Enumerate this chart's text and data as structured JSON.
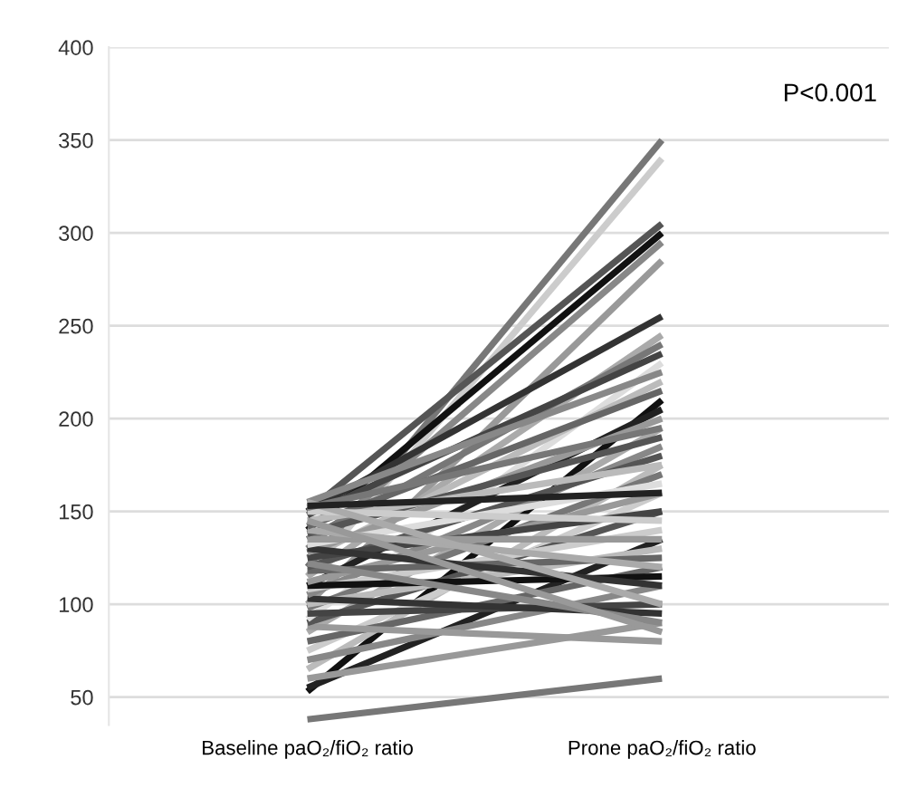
{
  "chart_data": {
    "type": "line",
    "categories": [
      "Baseline paO₂/fiO₂ ratio",
      "Prone paO₂/fiO₂ ratio"
    ],
    "ylim": [
      35,
      400
    ],
    "yticks": [
      50,
      100,
      150,
      200,
      250,
      300,
      350,
      400
    ],
    "grid": "y",
    "legend": false,
    "marker": "none",
    "line_style": "solid",
    "annotations": [
      "P<0.001"
    ],
    "series": [
      {
        "color": "#777777",
        "values": [
          38,
          60
        ]
      },
      {
        "color": "#111111",
        "values": [
          53,
          210
        ]
      },
      {
        "color": "#222222",
        "values": [
          55,
          135
        ]
      },
      {
        "color": "#999999",
        "values": [
          60,
          90
        ]
      },
      {
        "color": "#bbbbbb",
        "values": [
          65,
          175
        ]
      },
      {
        "color": "#888888",
        "values": [
          70,
          110
        ]
      },
      {
        "color": "#cccccc",
        "values": [
          75,
          160
        ]
      },
      {
        "color": "#666666",
        "values": [
          80,
          120
        ]
      },
      {
        "color": "#aaaaaa",
        "values": [
          85,
          195
        ]
      },
      {
        "color": "#999999",
        "values": [
          88,
          80
        ]
      },
      {
        "color": "#555555",
        "values": [
          90,
          150
        ]
      },
      {
        "color": "#dddddd",
        "values": [
          92,
          230
        ]
      },
      {
        "color": "#444444",
        "values": [
          95,
          100
        ]
      },
      {
        "color": "#777777",
        "values": [
          98,
          170
        ]
      },
      {
        "color": "#999999",
        "values": [
          100,
          285
        ]
      },
      {
        "color": "#bbbbbb",
        "values": [
          100,
          130
        ]
      },
      {
        "color": "#333333",
        "values": [
          103,
          95
        ]
      },
      {
        "color": "#888888",
        "values": [
          105,
          185
        ]
      },
      {
        "color": "#cccccc",
        "values": [
          108,
          140
        ]
      },
      {
        "color": "#222222",
        "values": [
          110,
          205
        ]
      },
      {
        "color": "#111111",
        "values": [
          110,
          115
        ]
      },
      {
        "color": "#999999",
        "values": [
          112,
          160
        ]
      },
      {
        "color": "#cccccc",
        "values": [
          115,
          340
        ]
      },
      {
        "color": "#aaaaaa",
        "values": [
          115,
          245
        ]
      },
      {
        "color": "#666666",
        "values": [
          118,
          125
        ]
      },
      {
        "color": "#777777",
        "values": [
          120,
          350
        ]
      },
      {
        "color": "#555555",
        "values": [
          120,
          180
        ]
      },
      {
        "color": "#888888",
        "values": [
          122,
          90
        ]
      },
      {
        "color": "#bbbbbb",
        "values": [
          125,
          220
        ]
      },
      {
        "color": "#444444",
        "values": [
          125,
          150
        ]
      },
      {
        "color": "#999999",
        "values": [
          128,
          200
        ]
      },
      {
        "color": "#888888",
        "values": [
          130,
          295
        ]
      },
      {
        "color": "#333333",
        "values": [
          130,
          110
        ]
      },
      {
        "color": "#dddddd",
        "values": [
          132,
          165
        ]
      },
      {
        "color": "#777777",
        "values": [
          135,
          240
        ]
      },
      {
        "color": "#999999",
        "values": [
          135,
          135
        ]
      },
      {
        "color": "#555555",
        "values": [
          138,
          190
        ]
      },
      {
        "color": "#111111",
        "values": [
          140,
          300
        ]
      },
      {
        "color": "#aaaaaa",
        "values": [
          140,
          120
        ]
      },
      {
        "color": "#666666",
        "values": [
          142,
          215
        ]
      },
      {
        "color": "#bbbbbb",
        "values": [
          145,
          175
        ]
      },
      {
        "color": "#999999",
        "values": [
          145,
          85
        ]
      },
      {
        "color": "#444444",
        "values": [
          148,
          235
        ]
      },
      {
        "color": "#555555",
        "values": [
          150,
          305
        ]
      },
      {
        "color": "#333333",
        "values": [
          150,
          255
        ]
      },
      {
        "color": "#cccccc",
        "values": [
          150,
          145
        ]
      },
      {
        "color": "#777777",
        "values": [
          152,
          195
        ]
      },
      {
        "color": "#888888",
        "values": [
          155,
          225
        ]
      },
      {
        "color": "#aaaaaa",
        "values": [
          155,
          100
        ]
      },
      {
        "color": "#222222",
        "values": [
          153,
          160
        ]
      }
    ]
  }
}
